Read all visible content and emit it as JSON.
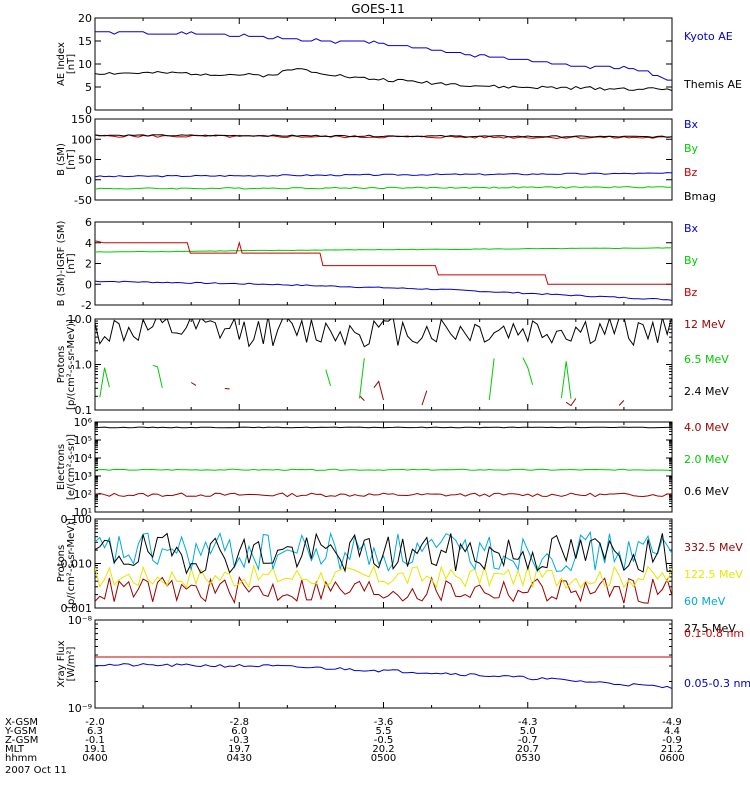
{
  "title": "GOES-11",
  "colors": {
    "blue": "#0000cc",
    "green": "#00cc00",
    "red": "#cc0000",
    "darkred": "#990000",
    "black": "#000000",
    "yellow": "#e6e600",
    "cyan": "#00aadd"
  },
  "footer": {
    "row_labels": [
      "X-GSM",
      "Y-GSM",
      "Z-GSM",
      "MLT",
      "hhmm",
      "2007 Oct 11"
    ],
    "columns": [
      [
        "-2.0",
        "6.3",
        "-0.1",
        "19.1",
        "0400"
      ],
      [
        "-2.8",
        "6.0",
        "-0.3",
        "19.7",
        "0430"
      ],
      [
        "-3.6",
        "5.5",
        "-0.5",
        "20.2",
        "0500"
      ],
      [
        "-4.3",
        "5.0",
        "-0.7",
        "20.7",
        "0530"
      ],
      [
        "-4.9",
        "4.4",
        "-0.9",
        "21.2",
        "0600"
      ]
    ]
  },
  "chart_data": [
    {
      "type": "line",
      "ylabel": [
        "AE Index",
        "[nT]"
      ],
      "ylim": [
        0,
        20
      ],
      "yticks": [
        "0",
        "5",
        "10",
        "15",
        "20"
      ],
      "yticks_v": [
        0,
        5,
        10,
        15,
        20
      ],
      "series": [
        {
          "name": "Kyoto AE",
          "color": "blue",
          "gen": "step",
          "start": 17,
          "end": 6.5,
          "seed": 1,
          "pts": [
            [
              0,
              17
            ],
            [
              0.2,
              16.5
            ],
            [
              0.4,
              15
            ],
            [
              0.5,
              14.5
            ],
            [
              0.58,
              13.2
            ],
            [
              0.68,
              11.5
            ],
            [
              0.78,
              10.5
            ],
            [
              0.85,
              9.5
            ],
            [
              0.94,
              9
            ],
            [
              1,
              6.5
            ]
          ],
          "noise": 0.5
        },
        {
          "name": "Themis AE",
          "color": "black",
          "gen": "smooth",
          "start": 8,
          "end": 4.5,
          "seed": 2,
          "pts": [
            [
              0,
              8
            ],
            [
              0.15,
              8
            ],
            [
              0.3,
              7.5
            ],
            [
              0.35,
              9
            ],
            [
              0.45,
              7
            ],
            [
              0.7,
              5
            ],
            [
              1,
              4.5
            ]
          ],
          "noise": 0.6
        }
      ]
    },
    {
      "type": "line",
      "ylabel": [
        "B (SM)",
        "[nT]"
      ],
      "ylim": [
        -50,
        150
      ],
      "yticks": [
        "-50",
        "0",
        "50",
        "100",
        "150"
      ],
      "yticks_v": [
        -50,
        0,
        50,
        100,
        150
      ],
      "series": [
        {
          "name": "Bx",
          "color": "blue",
          "gen": "smooth",
          "seed": 3,
          "pts": [
            [
              0,
              8
            ],
            [
              0.5,
              12
            ],
            [
              1,
              16
            ]
          ],
          "noise": 0.3
        },
        {
          "name": "By",
          "color": "green",
          "gen": "smooth",
          "seed": 4,
          "pts": [
            [
              0,
              -22
            ],
            [
              0.5,
              -20
            ],
            [
              1,
              -18
            ]
          ],
          "noise": 0.3
        },
        {
          "name": "Bz",
          "color": "red",
          "gen": "smooth",
          "seed": 5,
          "pts": [
            [
              0,
              108
            ],
            [
              0.5,
              106
            ],
            [
              1,
              104
            ]
          ],
          "noise": 0.5
        },
        {
          "name": "Bmag",
          "color": "black",
          "gen": "smooth",
          "seed": 6,
          "pts": [
            [
              0,
              110
            ],
            [
              0.5,
              108
            ],
            [
              1,
              106
            ]
          ],
          "noise": 0.3
        }
      ]
    },
    {
      "type": "line",
      "ylabel": [
        "B (SM)-IGRF (SM)",
        "[nT]"
      ],
      "ylim": [
        -2,
        6
      ],
      "yticks": [
        "-2",
        "0",
        "2",
        "4",
        "6"
      ],
      "yticks_v": [
        -2,
        0,
        2,
        4,
        6
      ],
      "series": [
        {
          "name": "Bx",
          "color": "blue",
          "gen": "smooth",
          "seed": 7,
          "pts": [
            [
              0,
              0.3
            ],
            [
              0.3,
              0
            ],
            [
              0.6,
              -0.5
            ],
            [
              0.8,
              -1
            ],
            [
              1,
              -1.5
            ]
          ],
          "noise": 0.25
        },
        {
          "name": "By",
          "color": "green",
          "gen": "smooth",
          "seed": 8,
          "pts": [
            [
              0,
              3.1
            ],
            [
              0.4,
              3.3
            ],
            [
              1,
              3.5
            ]
          ],
          "noise": 0.12
        },
        {
          "name": "Bz",
          "color": "red",
          "gen": "stepfixed",
          "seed": 9,
          "pts": [
            [
              0,
              4.2
            ],
            [
              0.015,
              4.0
            ],
            [
              0.16,
              4.0
            ],
            [
              0.165,
              3.0
            ],
            [
              0.245,
              3.0
            ],
            [
              0.25,
              4
            ],
            [
              0.255,
              3.0
            ],
            [
              0.39,
              3.0
            ],
            [
              0.395,
              1.8
            ],
            [
              0.59,
              1.8
            ],
            [
              0.595,
              0.9
            ],
            [
              0.78,
              0.9
            ],
            [
              0.785,
              0
            ],
            [
              1,
              0
            ]
          ]
        }
      ]
    },
    {
      "type": "line",
      "log": true,
      "ylabel": [
        "Protons",
        "[p/(cm²-s-sr-MeV)]"
      ],
      "ylim": [
        0.1,
        10
      ],
      "yticks": [
        "0.1",
        "1.0",
        "10.0"
      ],
      "yticks_v": [
        0.1,
        1,
        10
      ],
      "series": [
        {
          "name": "12 MeV",
          "color": "darkred",
          "gen": "fragments",
          "seed": 10,
          "base": 0.12,
          "spread": 0.7
        },
        {
          "name": "6.5 MeV",
          "color": "green",
          "gen": "fragments",
          "seed": 11,
          "base": 0.15,
          "spread": 2.2
        },
        {
          "name": "2.4 MeV",
          "color": "black",
          "gen": "noisy",
          "seed": 12,
          "base": 5.5,
          "spread": 0.35
        }
      ]
    },
    {
      "type": "line",
      "log": true,
      "ylabel": [
        "Electrons",
        "[e/(cm²-s-sr)]"
      ],
      "ylim": [
        10,
        1000000
      ],
      "yticks": [
        "10¹",
        "10²",
        "10³",
        "10⁴",
        "10⁵",
        "10⁶"
      ],
      "yticks_v": [
        10,
        100,
        1000,
        10000,
        100000,
        1000000
      ],
      "series": [
        {
          "name": "4.0 MeV",
          "color": "darkred",
          "gen": "noisy",
          "seed": 13,
          "base": 90,
          "spread": 0.1
        },
        {
          "name": "2.0 MeV",
          "color": "green",
          "gen": "noisy",
          "seed": 14,
          "base": 2200,
          "spread": 0.03
        },
        {
          "name": "0.6 MeV",
          "color": "black",
          "gen": "noisy",
          "seed": 15,
          "base": 500000,
          "spread": 0.02
        }
      ]
    },
    {
      "type": "line",
      "log": true,
      "ylabel": [
        "Protons",
        "[p/(cm²-s-sr-MeV)]"
      ],
      "ylim": [
        0.001,
        0.1
      ],
      "yticks": [
        "0.001",
        "0.010",
        "0.100"
      ],
      "yticks_v": [
        0.001,
        0.01,
        0.1
      ],
      "series": [
        {
          "name": "332.5 MeV",
          "color": "darkred",
          "gen": "noisy",
          "seed": 16,
          "base": 0.0025,
          "spread": 0.3
        },
        {
          "name": "122.5 MeV",
          "color": "yellow",
          "gen": "noisy",
          "seed": 17,
          "base": 0.005,
          "spread": 0.25
        },
        {
          "name": "60 MeV",
          "color": "cyan",
          "gen": "noisy",
          "seed": 18,
          "base": 0.018,
          "spread": 0.45
        },
        {
          "name": "27.5 MeV",
          "color": "black",
          "gen": "noisy",
          "seed": 19,
          "base": 0.017,
          "spread": 0.45
        }
      ]
    },
    {
      "type": "line",
      "log": true,
      "ylabel": [
        "Xray Flux",
        "[W/m²]"
      ],
      "ylim": [
        1e-09,
        1e-08
      ],
      "yticks": [
        "10⁻⁹",
        "10⁻⁸"
      ],
      "yticks_v": [
        1e-09,
        1e-08
      ],
      "series": [
        {
          "name": "0.1-0.8 nm",
          "color": "red",
          "gen": "smooth",
          "seed": 20,
          "pts": [
            [
              0,
              3.8e-09
            ],
            [
              1,
              3.8e-09
            ]
          ],
          "noise": 0
        },
        {
          "name": "0.05-0.3 nm",
          "color": "blue",
          "gen": "smooth",
          "seed": 21,
          "pts": [
            [
              0,
              3.1e-09
            ],
            [
              0.3,
              3e-09
            ],
            [
              0.6,
              2.5e-09
            ],
            [
              1,
              1.7e-09
            ]
          ],
          "noise": 0.04
        }
      ]
    }
  ]
}
